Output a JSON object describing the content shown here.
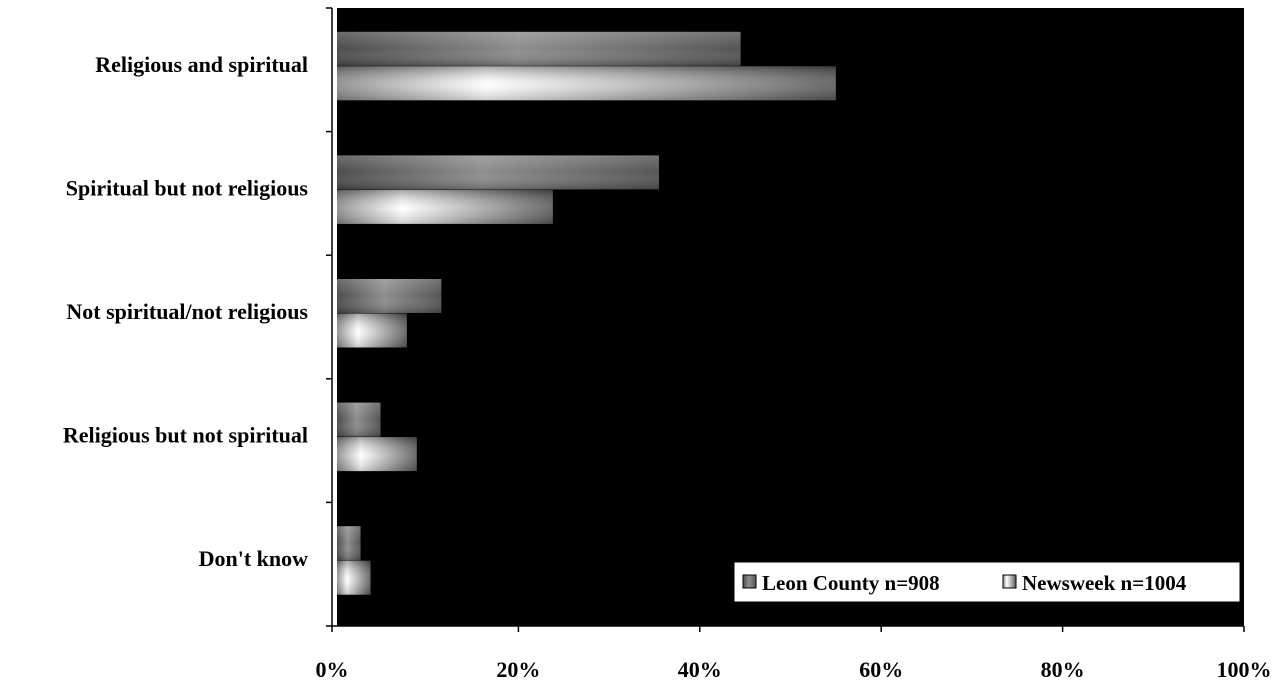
{
  "chart_data": {
    "type": "bar",
    "orientation": "horizontal",
    "categories": [
      "Religious and spiritual",
      "Spiritual but not religious",
      "Not spiritual/not religious",
      "Religious but not spiritual",
      "Don't know"
    ],
    "series": [
      {
        "name": "Leon County n=908",
        "values": [
          44.5,
          35.5,
          11.5,
          4.8,
          2.6
        ]
      },
      {
        "name": "Newsweek n=1004",
        "values": [
          55,
          23.8,
          7.7,
          8.8,
          3.7
        ]
      }
    ],
    "xlim": [
      0,
      100
    ],
    "xticks": [
      "0%",
      "20%",
      "40%",
      "60%",
      "80%",
      "100%"
    ],
    "xtick_values": [
      0,
      20,
      40,
      60,
      80,
      100
    ],
    "legend_position": "bottom-right",
    "grid": false,
    "plot_background": "#000000",
    "colors": {
      "leon": "#6e6e6e",
      "newsweek": "#ffffff"
    }
  }
}
